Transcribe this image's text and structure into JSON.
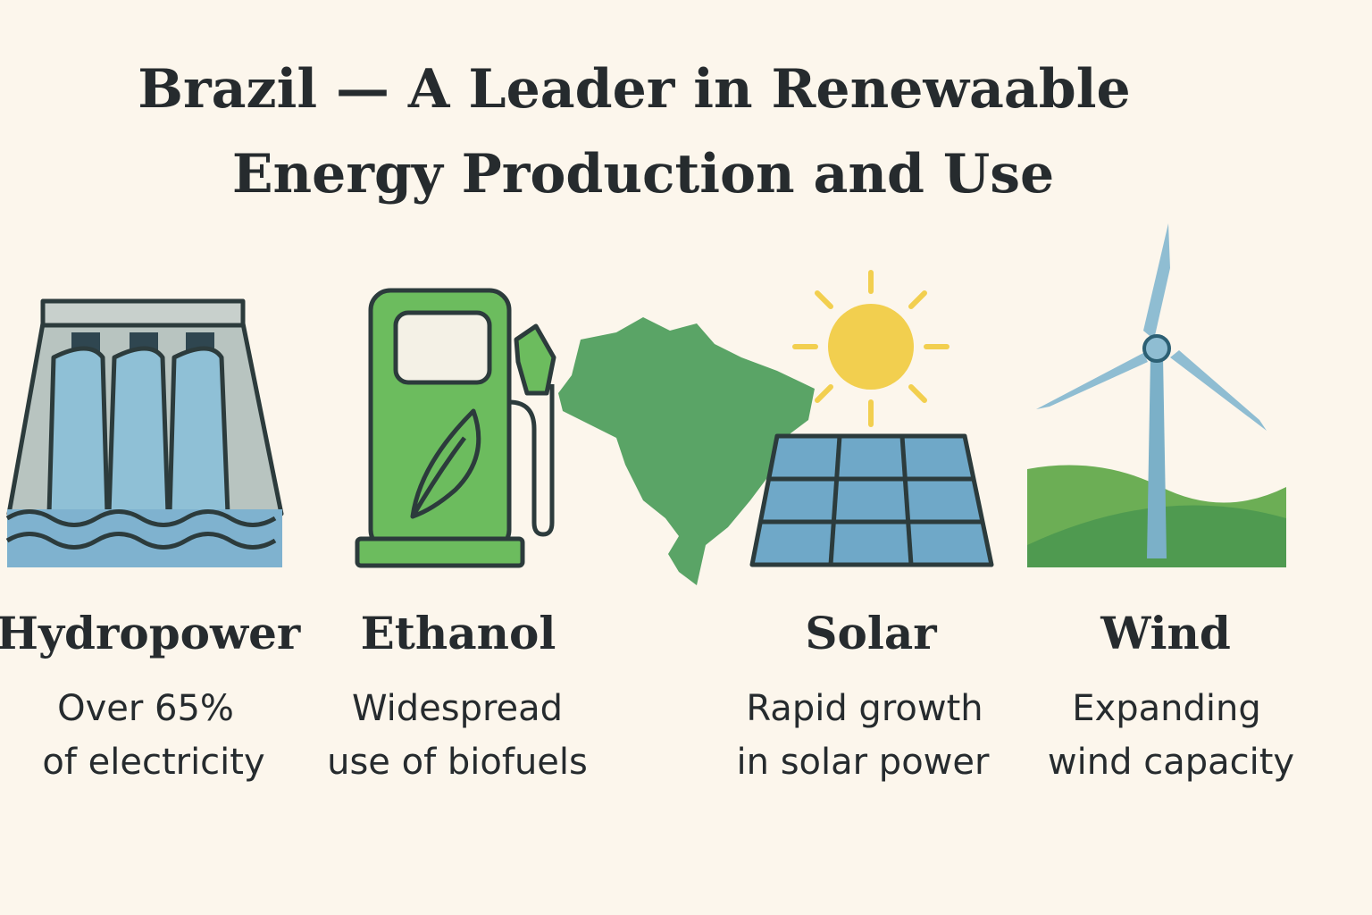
{
  "title": [
    "Brazil — A Leader in Renewaable",
    "Energy Production and Use"
  ],
  "items": [
    {
      "label": "Hydropower",
      "description": [
        "Over 65%",
        "of electricity"
      ]
    },
    {
      "label": "Ethanol",
      "description": [
        "Widespread",
        "use of biofuels"
      ]
    },
    {
      "label": "Solar",
      "description": [
        "Rapid growth",
        "in solar power"
      ]
    },
    {
      "label": "Wind",
      "description": [
        "Expanding",
        "wind capacity"
      ]
    }
  ]
}
